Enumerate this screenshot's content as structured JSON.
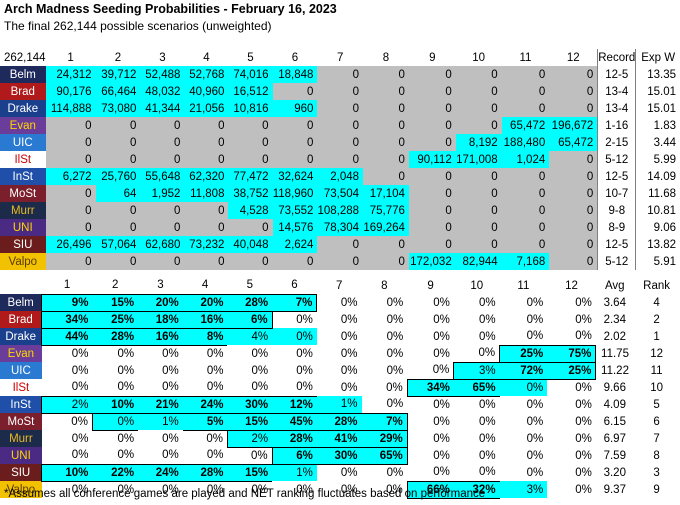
{
  "title": "Arch Madness Seeding Probabilities - February 16, 2023",
  "subtitle": "The final 262,144 possible scenarios (unweighted)",
  "footnote": "*Assumes all conference games are played and NET ranking fluctuates based on performance",
  "colors": {
    "cyan": "#00ffff",
    "gray": "#bfbfbf",
    "outline": "#000000"
  },
  "counts_table": {
    "corner": "262,144",
    "columns": [
      "1",
      "2",
      "3",
      "4",
      "5",
      "6",
      "7",
      "8",
      "9",
      "10",
      "11",
      "12",
      "Record",
      "Exp W"
    ],
    "rows": [
      {
        "team": "Belm",
        "bg": "#1f2a5c",
        "fg": "#ffffff",
        "values": [
          "24,312",
          "39,712",
          "52,488",
          "52,768",
          "74,016",
          "18,848",
          "0",
          "0",
          "0",
          "0",
          "0",
          "0"
        ],
        "record": "12-5",
        "expw": "13.35"
      },
      {
        "team": "Brad",
        "bg": "#b01a1a",
        "fg": "#ffffff",
        "values": [
          "90,176",
          "66,464",
          "48,032",
          "40,960",
          "16,512",
          "0",
          "0",
          "0",
          "0",
          "0",
          "0",
          "0"
        ],
        "record": "13-4",
        "expw": "15.01"
      },
      {
        "team": "Drake",
        "bg": "#1a3f8c",
        "fg": "#ffffff",
        "values": [
          "114,888",
          "73,080",
          "41,344",
          "21,056",
          "10,816",
          "960",
          "0",
          "0",
          "0",
          "0",
          "0",
          "0"
        ],
        "record": "13-4",
        "expw": "15.01"
      },
      {
        "team": "Evan",
        "bg": "#6a3d9a",
        "fg": "#ffd700",
        "values": [
          "0",
          "0",
          "0",
          "0",
          "0",
          "0",
          "0",
          "0",
          "0",
          "0",
          "65,472",
          "196,672"
        ],
        "record": "1-16",
        "expw": "1.83"
      },
      {
        "team": "UIC",
        "bg": "#2a7ad1",
        "fg": "#ffffff",
        "values": [
          "0",
          "0",
          "0",
          "0",
          "0",
          "0",
          "0",
          "0",
          "0",
          "8,192",
          "188,480",
          "65,472"
        ],
        "record": "2-15",
        "expw": "3.44"
      },
      {
        "team": "IlSt",
        "bg": "#ffffff",
        "fg": "#cc0000",
        "values": [
          "0",
          "0",
          "0",
          "0",
          "0",
          "0",
          "0",
          "0",
          "90,112",
          "171,008",
          "1,024",
          "0"
        ],
        "record": "5-12",
        "expw": "5.99"
      },
      {
        "team": "InSt",
        "bg": "#1f4fa8",
        "fg": "#ffffff",
        "values": [
          "6,272",
          "25,760",
          "55,648",
          "62,320",
          "77,472",
          "32,624",
          "2,048",
          "0",
          "0",
          "0",
          "0",
          "0"
        ],
        "record": "12-5",
        "expw": "14.09"
      },
      {
        "team": "MoSt",
        "bg": "#7a1f2b",
        "fg": "#ffffff",
        "values": [
          "0",
          "64",
          "1,952",
          "11,808",
          "38,752",
          "118,960",
          "73,504",
          "17,104",
          "0",
          "0",
          "0",
          "0"
        ],
        "record": "10-7",
        "expw": "11.68"
      },
      {
        "team": "Murr",
        "bg": "#1c2b4a",
        "fg": "#e8b923",
        "values": [
          "0",
          "0",
          "0",
          "0",
          "4,528",
          "73,552",
          "108,288",
          "75,776",
          "0",
          "0",
          "0",
          "0"
        ],
        "record": "9-8",
        "expw": "10.81"
      },
      {
        "team": "UNI",
        "bg": "#4b2a84",
        "fg": "#ffd700",
        "values": [
          "0",
          "0",
          "0",
          "0",
          "0",
          "14,576",
          "78,304",
          "169,264",
          "0",
          "0",
          "0",
          "0"
        ],
        "record": "8-9",
        "expw": "9.06"
      },
      {
        "team": "SIU",
        "bg": "#6b1d1d",
        "fg": "#ffffff",
        "values": [
          "26,496",
          "57,064",
          "62,680",
          "73,232",
          "40,048",
          "2,624",
          "0",
          "0",
          "0",
          "0",
          "0",
          "0"
        ],
        "record": "12-5",
        "expw": "13.82"
      },
      {
        "team": "Valpo",
        "bg": "#f2c200",
        "fg": "#5a3a00",
        "values": [
          "0",
          "0",
          "0",
          "0",
          "0",
          "0",
          "0",
          "0",
          "172,032",
          "82,944",
          "7,168",
          "0"
        ],
        "record": "5-12",
        "expw": "5.91"
      }
    ]
  },
  "percent_table": {
    "columns": [
      "1",
      "2",
      "3",
      "4",
      "5",
      "6",
      "7",
      "8",
      "9",
      "10",
      "11",
      "12",
      "Avg",
      "Rank"
    ],
    "rows": [
      {
        "team": "Belm",
        "values": [
          "9%",
          "15%",
          "20%",
          "20%",
          "28%",
          "7%",
          "0%",
          "0%",
          "0%",
          "0%",
          "0%",
          "0%"
        ],
        "avg": "3.64",
        "rank": "4"
      },
      {
        "team": "Brad",
        "values": [
          "34%",
          "25%",
          "18%",
          "16%",
          "6%",
          "0%",
          "0%",
          "0%",
          "0%",
          "0%",
          "0%",
          "0%"
        ],
        "avg": "2.34",
        "rank": "2"
      },
      {
        "team": "Drake",
        "values": [
          "44%",
          "28%",
          "16%",
          "8%",
          "4%",
          "0%",
          "0%",
          "0%",
          "0%",
          "0%",
          "0%",
          "0%"
        ],
        "avg": "2.02",
        "rank": "1"
      },
      {
        "team": "Evan",
        "values": [
          "0%",
          "0%",
          "0%",
          "0%",
          "0%",
          "0%",
          "0%",
          "0%",
          "0%",
          "0%",
          "25%",
          "75%"
        ],
        "avg": "11.75",
        "rank": "12"
      },
      {
        "team": "UIC",
        "values": [
          "0%",
          "0%",
          "0%",
          "0%",
          "0%",
          "0%",
          "0%",
          "0%",
          "0%",
          "3%",
          "72%",
          "25%"
        ],
        "avg": "11.22",
        "rank": "11"
      },
      {
        "team": "IlSt",
        "values": [
          "0%",
          "0%",
          "0%",
          "0%",
          "0%",
          "0%",
          "0%",
          "0%",
          "34%",
          "65%",
          "0%",
          "0%"
        ],
        "avg": "9.66",
        "rank": "10"
      },
      {
        "team": "InSt",
        "values": [
          "2%",
          "10%",
          "21%",
          "24%",
          "30%",
          "12%",
          "1%",
          "0%",
          "0%",
          "0%",
          "0%",
          "0%"
        ],
        "avg": "4.09",
        "rank": "5"
      },
      {
        "team": "MoSt",
        "values": [
          "0%",
          "0%",
          "1%",
          "5%",
          "15%",
          "45%",
          "28%",
          "7%",
          "0%",
          "0%",
          "0%",
          "0%"
        ],
        "avg": "6.15",
        "rank": "6"
      },
      {
        "team": "Murr",
        "values": [
          "0%",
          "0%",
          "0%",
          "0%",
          "2%",
          "28%",
          "41%",
          "29%",
          "0%",
          "0%",
          "0%",
          "0%"
        ],
        "avg": "6.97",
        "rank": "7"
      },
      {
        "team": "UNI",
        "values": [
          "0%",
          "0%",
          "0%",
          "0%",
          "0%",
          "6%",
          "30%",
          "65%",
          "0%",
          "0%",
          "0%",
          "0%"
        ],
        "avg": "7.59",
        "rank": "8"
      },
      {
        "team": "SIU",
        "values": [
          "10%",
          "22%",
          "24%",
          "28%",
          "15%",
          "1%",
          "0%",
          "0%",
          "0%",
          "0%",
          "0%",
          "0%"
        ],
        "avg": "3.20",
        "rank": "3"
      },
      {
        "team": "Valpo",
        "values": [
          "0%",
          "0%",
          "0%",
          "0%",
          "0%",
          "0%",
          "0%",
          "0%",
          "66%",
          "32%",
          "3%",
          "0%"
        ],
        "avg": "9.37",
        "rank": "9"
      }
    ]
  }
}
